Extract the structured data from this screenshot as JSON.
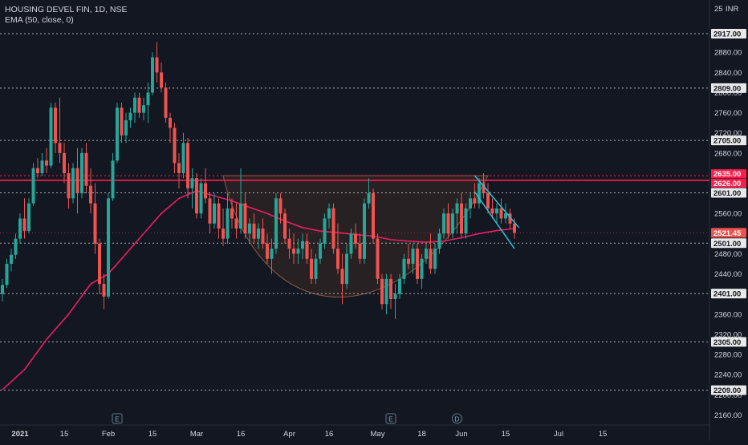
{
  "header": {
    "symbol_line": "HOUSING DEVEL FIN, 1D, NSE",
    "indicator_line": "EMA (50, close, 0)",
    "currency": "INR"
  },
  "colors": {
    "background": "#131722",
    "up": "#26a69a",
    "down": "#ef5350",
    "ema": "#e91e63",
    "channel": "#26c6da",
    "cup_fill": "#3a2a24",
    "cup_stroke": "#8a5a40",
    "level_line": "#c8c8c8",
    "resistance": "#ff1e4b",
    "axis_text": "#d1d4dc"
  },
  "chart_data": {
    "type": "candlestick",
    "title": "HOUSING DEVEL FIN, 1D, NSE",
    "indicator": "EMA (50, close, 0)",
    "ylim": [
      2140,
      2960
    ],
    "y_ticks": [
      2160,
      2200,
      2240,
      2280,
      2320,
      2360,
      2400,
      2440,
      2480,
      2520,
      2560,
      2600,
      2640,
      2680,
      2720,
      2760,
      2800,
      2840,
      2880
    ],
    "y_tick_labels": [
      "2160.00",
      "2200.00",
      "2240.00",
      "2280.00",
      "2320.00",
      "2360.00",
      "2400.00",
      "2440.00",
      "2480.00",
      "2520.00",
      "2560.00",
      "2600.00",
      "2640.00",
      "2680.00",
      "2720.00",
      "2760.00",
      "2800.00",
      "2840.00",
      "2880.00"
    ],
    "top_tick_label": "25",
    "x_tick_labels": [
      {
        "idx": 4,
        "label": "2021"
      },
      {
        "idx": 14,
        "label": "15"
      },
      {
        "idx": 24,
        "label": "Feb"
      },
      {
        "idx": 34,
        "label": "15"
      },
      {
        "idx": 44,
        "label": "Mar"
      },
      {
        "idx": 54,
        "label": "16"
      },
      {
        "idx": 65,
        "label": "Apr"
      },
      {
        "idx": 74,
        "label": "16"
      },
      {
        "idx": 85,
        "label": "May"
      },
      {
        "idx": 95,
        "label": "18"
      },
      {
        "idx": 104,
        "label": "Jun"
      },
      {
        "idx": 114,
        "label": "15"
      },
      {
        "idx": 126,
        "label": "Jul"
      },
      {
        "idx": 136,
        "label": "15"
      }
    ],
    "events": [
      {
        "idx": 26,
        "label": "E"
      },
      {
        "idx": 88,
        "label": "E"
      },
      {
        "idx": 103,
        "label": "D"
      }
    ],
    "levels": [
      {
        "value": 2917,
        "label": "2917.00",
        "style": "dotted"
      },
      {
        "value": 2809,
        "label": "2809.00",
        "style": "dotted"
      },
      {
        "value": 2705,
        "label": "2705.00",
        "style": "dotted"
      },
      {
        "value": 2601,
        "label": "2601.00",
        "style": "dotted"
      },
      {
        "value": 2501,
        "label": "2501.00",
        "style": "dotted"
      },
      {
        "value": 2401,
        "label": "2401.00",
        "style": "dotted"
      },
      {
        "value": 2305,
        "label": "2305.00",
        "style": "dotted"
      },
      {
        "value": 2209,
        "label": "2209.00",
        "style": "dotted"
      }
    ],
    "resistance": [
      {
        "value": 2635,
        "label": "2635.00",
        "style": "dotted"
      },
      {
        "value": 2626,
        "label": "2626.00",
        "style": "solid"
      }
    ],
    "last_price": {
      "value": 2521.45,
      "label": "2521.45"
    },
    "cup": {
      "start_idx": 50,
      "end_idx": 110,
      "rim": 2635,
      "bottom": 2355
    },
    "channel": {
      "upper": {
        "from": [
          107,
          2635
        ],
        "to": [
          117,
          2532
        ]
      },
      "lower": {
        "from": [
          107,
          2603
        ],
        "to": [
          116,
          2490
        ]
      }
    },
    "ohlc": [
      {
        "open": 2400,
        "high": 2430,
        "low": 2385,
        "close": 2418
      },
      {
        "open": 2418,
        "high": 2470,
        "low": 2412,
        "close": 2460
      },
      {
        "open": 2460,
        "high": 2490,
        "low": 2445,
        "close": 2478
      },
      {
        "open": 2478,
        "high": 2520,
        "low": 2470,
        "close": 2510
      },
      {
        "open": 2510,
        "high": 2560,
        "low": 2500,
        "close": 2550
      },
      {
        "open": 2550,
        "high": 2590,
        "low": 2510,
        "close": 2525
      },
      {
        "open": 2525,
        "high": 2590,
        "low": 2520,
        "close": 2580
      },
      {
        "open": 2580,
        "high": 2660,
        "low": 2575,
        "close": 2650
      },
      {
        "open": 2650,
        "high": 2670,
        "low": 2630,
        "close": 2640
      },
      {
        "open": 2640,
        "high": 2680,
        "low": 2635,
        "close": 2665
      },
      {
        "open": 2665,
        "high": 2690,
        "low": 2640,
        "close": 2655
      },
      {
        "open": 2655,
        "high": 2780,
        "low": 2650,
        "close": 2770
      },
      {
        "open": 2770,
        "high": 2780,
        "low": 2680,
        "close": 2700
      },
      {
        "open": 2700,
        "high": 2790,
        "low": 2660,
        "close": 2680
      },
      {
        "open": 2680,
        "high": 2700,
        "low": 2620,
        "close": 2640
      },
      {
        "open": 2640,
        "high": 2660,
        "low": 2570,
        "close": 2590
      },
      {
        "open": 2590,
        "high": 2660,
        "low": 2580,
        "close": 2650
      },
      {
        "open": 2650,
        "high": 2690,
        "low": 2560,
        "close": 2600
      },
      {
        "open": 2600,
        "high": 2690,
        "low": 2590,
        "close": 2680
      },
      {
        "open": 2680,
        "high": 2700,
        "low": 2600,
        "close": 2615
      },
      {
        "open": 2615,
        "high": 2650,
        "low": 2560,
        "close": 2580
      },
      {
        "open": 2580,
        "high": 2620,
        "low": 2480,
        "close": 2500
      },
      {
        "open": 2500,
        "high": 2510,
        "low": 2400,
        "close": 2420
      },
      {
        "open": 2420,
        "high": 2440,
        "low": 2370,
        "close": 2395
      },
      {
        "open": 2395,
        "high": 2600,
        "low": 2390,
        "close": 2590
      },
      {
        "open": 2590,
        "high": 2680,
        "low": 2585,
        "close": 2665
      },
      {
        "open": 2665,
        "high": 2780,
        "low": 2660,
        "close": 2770
      },
      {
        "open": 2770,
        "high": 2780,
        "low": 2700,
        "close": 2715
      },
      {
        "open": 2715,
        "high": 2760,
        "low": 2700,
        "close": 2745
      },
      {
        "open": 2745,
        "high": 2770,
        "low": 2730,
        "close": 2760
      },
      {
        "open": 2760,
        "high": 2800,
        "low": 2740,
        "close": 2790
      },
      {
        "open": 2790,
        "high": 2800,
        "low": 2750,
        "close": 2760
      },
      {
        "open": 2760,
        "high": 2790,
        "low": 2745,
        "close": 2775
      },
      {
        "open": 2775,
        "high": 2820,
        "low": 2740,
        "close": 2800
      },
      {
        "open": 2800,
        "high": 2880,
        "low": 2795,
        "close": 2870
      },
      {
        "open": 2870,
        "high": 2900,
        "low": 2820,
        "close": 2840
      },
      {
        "open": 2840,
        "high": 2860,
        "low": 2800,
        "close": 2810
      },
      {
        "open": 2810,
        "high": 2820,
        "low": 2740,
        "close": 2750
      },
      {
        "open": 2750,
        "high": 2760,
        "low": 2700,
        "close": 2730
      },
      {
        "open": 2730,
        "high": 2740,
        "low": 2640,
        "close": 2660
      },
      {
        "open": 2660,
        "high": 2680,
        "low": 2610,
        "close": 2640
      },
      {
        "open": 2640,
        "high": 2720,
        "low": 2630,
        "close": 2700
      },
      {
        "open": 2700,
        "high": 2710,
        "low": 2590,
        "close": 2610
      },
      {
        "open": 2610,
        "high": 2650,
        "low": 2570,
        "close": 2630
      },
      {
        "open": 2630,
        "high": 2640,
        "low": 2550,
        "close": 2560
      },
      {
        "open": 2560,
        "high": 2630,
        "low": 2550,
        "close": 2620
      },
      {
        "open": 2620,
        "high": 2650,
        "low": 2580,
        "close": 2590
      },
      {
        "open": 2590,
        "high": 2600,
        "low": 2520,
        "close": 2540
      },
      {
        "open": 2540,
        "high": 2600,
        "low": 2530,
        "close": 2580
      },
      {
        "open": 2580,
        "high": 2590,
        "low": 2510,
        "close": 2530
      },
      {
        "open": 2530,
        "high": 2570,
        "low": 2495,
        "close": 2510
      },
      {
        "open": 2510,
        "high": 2600,
        "low": 2500,
        "close": 2570
      },
      {
        "open": 2570,
        "high": 2590,
        "low": 2530,
        "close": 2550
      },
      {
        "open": 2550,
        "high": 2580,
        "low": 2510,
        "close": 2530
      },
      {
        "open": 2530,
        "high": 2650,
        "low": 2520,
        "close": 2580
      },
      {
        "open": 2580,
        "high": 2600,
        "low": 2510,
        "close": 2520
      },
      {
        "open": 2520,
        "high": 2550,
        "low": 2500,
        "close": 2540
      },
      {
        "open": 2540,
        "high": 2560,
        "low": 2500,
        "close": 2510
      },
      {
        "open": 2510,
        "high": 2540,
        "low": 2490,
        "close": 2530
      },
      {
        "open": 2530,
        "high": 2550,
        "low": 2490,
        "close": 2500
      },
      {
        "open": 2500,
        "high": 2520,
        "low": 2460,
        "close": 2470
      },
      {
        "open": 2470,
        "high": 2510,
        "low": 2440,
        "close": 2490
      },
      {
        "open": 2490,
        "high": 2600,
        "low": 2480,
        "close": 2590
      },
      {
        "open": 2590,
        "high": 2600,
        "low": 2540,
        "close": 2560
      },
      {
        "open": 2560,
        "high": 2570,
        "low": 2500,
        "close": 2510
      },
      {
        "open": 2510,
        "high": 2530,
        "low": 2470,
        "close": 2490
      },
      {
        "open": 2490,
        "high": 2520,
        "low": 2460,
        "close": 2480
      },
      {
        "open": 2480,
        "high": 2510,
        "low": 2460,
        "close": 2490
      },
      {
        "open": 2490,
        "high": 2520,
        "low": 2470,
        "close": 2505
      },
      {
        "open": 2505,
        "high": 2520,
        "low": 2460,
        "close": 2470
      },
      {
        "open": 2470,
        "high": 2490,
        "low": 2420,
        "close": 2430
      },
      {
        "open": 2430,
        "high": 2480,
        "low": 2420,
        "close": 2470
      },
      {
        "open": 2470,
        "high": 2510,
        "low": 2460,
        "close": 2500
      },
      {
        "open": 2500,
        "high": 2560,
        "low": 2490,
        "close": 2550
      },
      {
        "open": 2550,
        "high": 2580,
        "low": 2530,
        "close": 2570
      },
      {
        "open": 2570,
        "high": 2580,
        "low": 2480,
        "close": 2490
      },
      {
        "open": 2490,
        "high": 2540,
        "low": 2440,
        "close": 2450
      },
      {
        "open": 2450,
        "high": 2480,
        "low": 2380,
        "close": 2420
      },
      {
        "open": 2420,
        "high": 2500,
        "low": 2410,
        "close": 2480
      },
      {
        "open": 2480,
        "high": 2530,
        "low": 2470,
        "close": 2520
      },
      {
        "open": 2520,
        "high": 2540,
        "low": 2490,
        "close": 2500
      },
      {
        "open": 2500,
        "high": 2520,
        "low": 2460,
        "close": 2470
      },
      {
        "open": 2470,
        "high": 2590,
        "low": 2460,
        "close": 2580
      },
      {
        "open": 2580,
        "high": 2630,
        "low": 2570,
        "close": 2600
      },
      {
        "open": 2600,
        "high": 2610,
        "low": 2500,
        "close": 2510
      },
      {
        "open": 2510,
        "high": 2520,
        "low": 2420,
        "close": 2430
      },
      {
        "open": 2430,
        "high": 2440,
        "low": 2370,
        "close": 2380
      },
      {
        "open": 2380,
        "high": 2440,
        "low": 2360,
        "close": 2430
      },
      {
        "open": 2430,
        "high": 2440,
        "low": 2370,
        "close": 2390
      },
      {
        "open": 2390,
        "high": 2420,
        "low": 2350,
        "close": 2400
      },
      {
        "open": 2400,
        "high": 2440,
        "low": 2390,
        "close": 2430
      },
      {
        "open": 2430,
        "high": 2480,
        "low": 2420,
        "close": 2470
      },
      {
        "open": 2470,
        "high": 2500,
        "low": 2450,
        "close": 2460
      },
      {
        "open": 2460,
        "high": 2500,
        "low": 2440,
        "close": 2490
      },
      {
        "open": 2490,
        "high": 2500,
        "low": 2420,
        "close": 2430
      },
      {
        "open": 2430,
        "high": 2480,
        "low": 2410,
        "close": 2470
      },
      {
        "open": 2470,
        "high": 2500,
        "low": 2460,
        "close": 2490
      },
      {
        "open": 2490,
        "high": 2520,
        "low": 2440,
        "close": 2450
      },
      {
        "open": 2450,
        "high": 2500,
        "low": 2440,
        "close": 2490
      },
      {
        "open": 2490,
        "high": 2530,
        "low": 2480,
        "close": 2520
      },
      {
        "open": 2520,
        "high": 2570,
        "low": 2510,
        "close": 2560
      },
      {
        "open": 2560,
        "high": 2580,
        "low": 2510,
        "close": 2520
      },
      {
        "open": 2520,
        "high": 2570,
        "low": 2510,
        "close": 2560
      },
      {
        "open": 2560,
        "high": 2590,
        "low": 2520,
        "close": 2580
      },
      {
        "open": 2580,
        "high": 2600,
        "low": 2510,
        "close": 2520
      },
      {
        "open": 2520,
        "high": 2580,
        "low": 2510,
        "close": 2570
      },
      {
        "open": 2570,
        "high": 2600,
        "low": 2550,
        "close": 2590
      },
      {
        "open": 2590,
        "high": 2620,
        "low": 2570,
        "close": 2580
      },
      {
        "open": 2580,
        "high": 2630,
        "low": 2570,
        "close": 2620
      },
      {
        "open": 2620,
        "high": 2640,
        "low": 2590,
        "close": 2600
      },
      {
        "open": 2600,
        "high": 2620,
        "low": 2560,
        "close": 2570
      },
      {
        "open": 2570,
        "high": 2590,
        "low": 2550,
        "close": 2560
      },
      {
        "open": 2560,
        "high": 2580,
        "low": 2540,
        "close": 2570
      },
      {
        "open": 2570,
        "high": 2590,
        "low": 2540,
        "close": 2550
      },
      {
        "open": 2550,
        "high": 2580,
        "low": 2540,
        "close": 2560
      },
      {
        "open": 2560,
        "high": 2570,
        "low": 2530,
        "close": 2540
      },
      {
        "open": 2540,
        "high": 2550,
        "low": 2510,
        "close": 2521.45
      }
    ],
    "ema50": [
      [
        0,
        2210
      ],
      [
        5,
        2250
      ],
      [
        10,
        2310
      ],
      [
        15,
        2360
      ],
      [
        20,
        2420
      ],
      [
        24,
        2440
      ],
      [
        28,
        2480
      ],
      [
        32,
        2520
      ],
      [
        36,
        2560
      ],
      [
        40,
        2590
      ],
      [
        44,
        2605
      ],
      [
        48,
        2595
      ],
      [
        52,
        2585
      ],
      [
        56,
        2572
      ],
      [
        60,
        2560
      ],
      [
        64,
        2545
      ],
      [
        68,
        2532
      ],
      [
        72,
        2525
      ],
      [
        76,
        2522
      ],
      [
        80,
        2518
      ],
      [
        84,
        2515
      ],
      [
        88,
        2508
      ],
      [
        92,
        2505
      ],
      [
        96,
        2503
      ],
      [
        100,
        2505
      ],
      [
        104,
        2512
      ],
      [
        108,
        2520
      ],
      [
        112,
        2526
      ],
      [
        116,
        2530
      ]
    ]
  }
}
